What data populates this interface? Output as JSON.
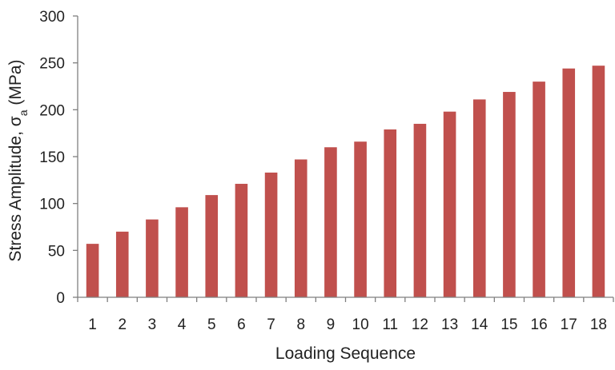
{
  "chart_data": {
    "type": "bar",
    "categories": [
      "1",
      "2",
      "3",
      "4",
      "5",
      "6",
      "7",
      "8",
      "9",
      "10",
      "11",
      "12",
      "13",
      "14",
      "15",
      "16",
      "17",
      "18"
    ],
    "series": [
      {
        "values": [
          57,
          70,
          83,
          96,
          109,
          121,
          133,
          147,
          160,
          166,
          179,
          185,
          198,
          211,
          219,
          230,
          244,
          247
        ]
      }
    ],
    "xlabel": "Loading Sequence",
    "ylabel": {
      "main": "Stress Amplitude, σ",
      "subscript": "a",
      "unit": " (MPa)"
    },
    "ylim": [
      0,
      300
    ],
    "yticks": [
      "0",
      "50",
      "100",
      "150",
      "200",
      "250",
      "300"
    ],
    "grid": false,
    "legend": "none",
    "colors": {
      "bar": "#c0504d",
      "axis": "#7f7f7f"
    }
  }
}
